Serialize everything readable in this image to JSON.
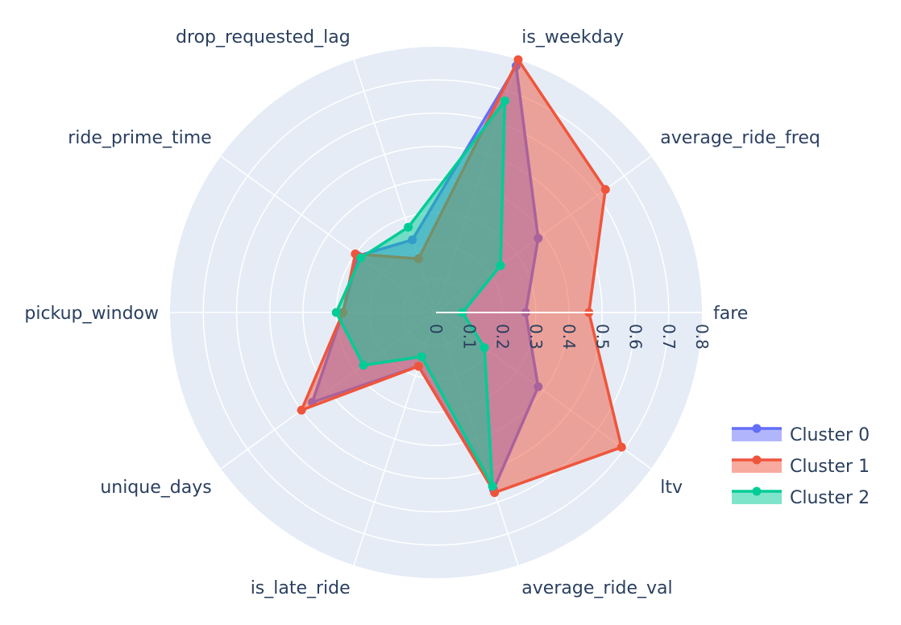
{
  "chart_data": {
    "type": "radar",
    "axes": [
      "fare",
      "average_ride_freq",
      "is_weekday",
      "drop_requested_lag",
      "ride_prime_time",
      "pickup_window",
      "unique_days",
      "is_late_ride",
      "average_ride_val",
      "ltv"
    ],
    "radial_range": [
      0,
      0.8
    ],
    "radial_ticks": [
      "0",
      "0.1",
      "0.2",
      "0.3",
      "0.4",
      "0.5",
      "0.6",
      "0.7",
      "0.8"
    ],
    "radial_tick_values": [
      0,
      0.1,
      0.2,
      0.3,
      0.4,
      0.5,
      0.6,
      0.7,
      0.8
    ],
    "grid": true,
    "legend_position": "bottom-right",
    "series": [
      {
        "name": "Cluster 0",
        "color": "#636efa",
        "values": [
          0.27,
          0.38,
          0.78,
          0.23,
          0.29,
          0.28,
          0.46,
          0.17,
          0.56,
          0.38
        ]
      },
      {
        "name": "Cluster 1",
        "color": "#ef553b",
        "values": [
          0.46,
          0.63,
          0.8,
          0.17,
          0.3,
          0.28,
          0.5,
          0.17,
          0.57,
          0.69
        ]
      },
      {
        "name": "Cluster 2",
        "color": "#00cc96",
        "values": [
          0.08,
          0.24,
          0.67,
          0.27,
          0.28,
          0.3,
          0.27,
          0.14,
          0.55,
          0.18
        ]
      }
    ]
  }
}
